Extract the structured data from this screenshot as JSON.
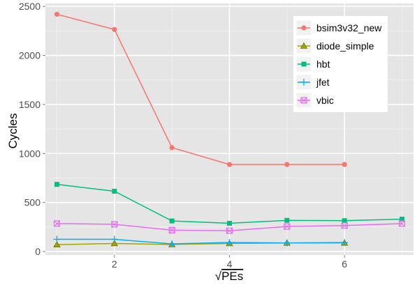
{
  "chart_data": {
    "type": "line",
    "title": "",
    "xlabel": "PEs",
    "xlabel_prefix": "√",
    "ylabel": "Cycles",
    "xlim": [
      0.8,
      7.2
    ],
    "ylim": [
      -35,
      2530
    ],
    "x_ticks": [
      2,
      4,
      6
    ],
    "y_ticks": [
      0,
      500,
      1000,
      1500,
      2000,
      2500
    ],
    "grid": true,
    "legend_position": "top-right",
    "series": [
      {
        "name": "bsim3v32_new",
        "color": "#F8766D",
        "marker": "circle",
        "x": [
          1,
          2,
          3,
          4,
          5,
          6
        ],
        "values": [
          2420,
          2265,
          1060,
          888,
          888,
          888
        ]
      },
      {
        "name": "diode_simple",
        "color": "#A3A500",
        "marker": "triangle",
        "x": [
          1,
          2,
          3,
          4,
          5,
          6
        ],
        "values": [
          70,
          82,
          72,
          82,
          88,
          88
        ]
      },
      {
        "name": "hbt",
        "color": "#00BF7D",
        "marker": "square",
        "x": [
          1,
          2,
          3,
          4,
          5,
          6,
          7
        ],
        "values": [
          685,
          615,
          312,
          288,
          318,
          315,
          330
        ]
      },
      {
        "name": "jfet",
        "color": "#00B0F6",
        "marker": "plus",
        "x": [
          1,
          2,
          3,
          4,
          5,
          6
        ],
        "values": [
          125,
          125,
          78,
          92,
          88,
          92
        ]
      },
      {
        "name": "vbic",
        "color": "#E76BF3",
        "marker": "boxed-x",
        "x": [
          1,
          2,
          3,
          4,
          5,
          6,
          7
        ],
        "values": [
          285,
          278,
          218,
          212,
          255,
          265,
          285
        ]
      }
    ]
  }
}
